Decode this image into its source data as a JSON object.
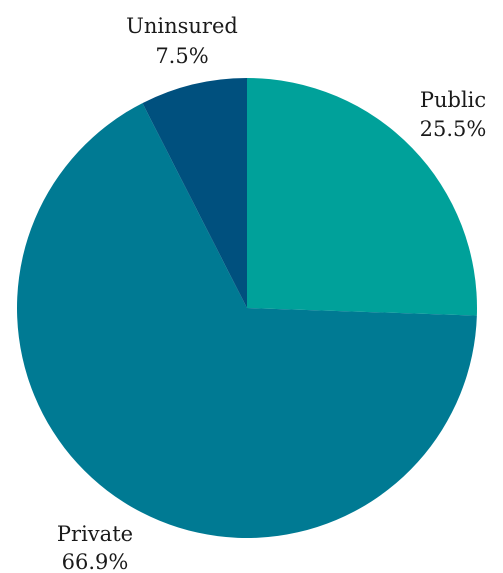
{
  "chart_data": {
    "type": "pie",
    "title": "",
    "start_angle_deg": 0,
    "direction": "clockwise",
    "slices": [
      {
        "label": "Public",
        "value": 25.5,
        "value_label": "25.5%",
        "color": "#00a19a"
      },
      {
        "label": "Private",
        "value": 66.9,
        "value_label": "66.9%",
        "color": "#007a93"
      },
      {
        "label": "Uninsured",
        "value": 7.5,
        "value_label": "7.5%",
        "color": "#00507e"
      }
    ]
  }
}
